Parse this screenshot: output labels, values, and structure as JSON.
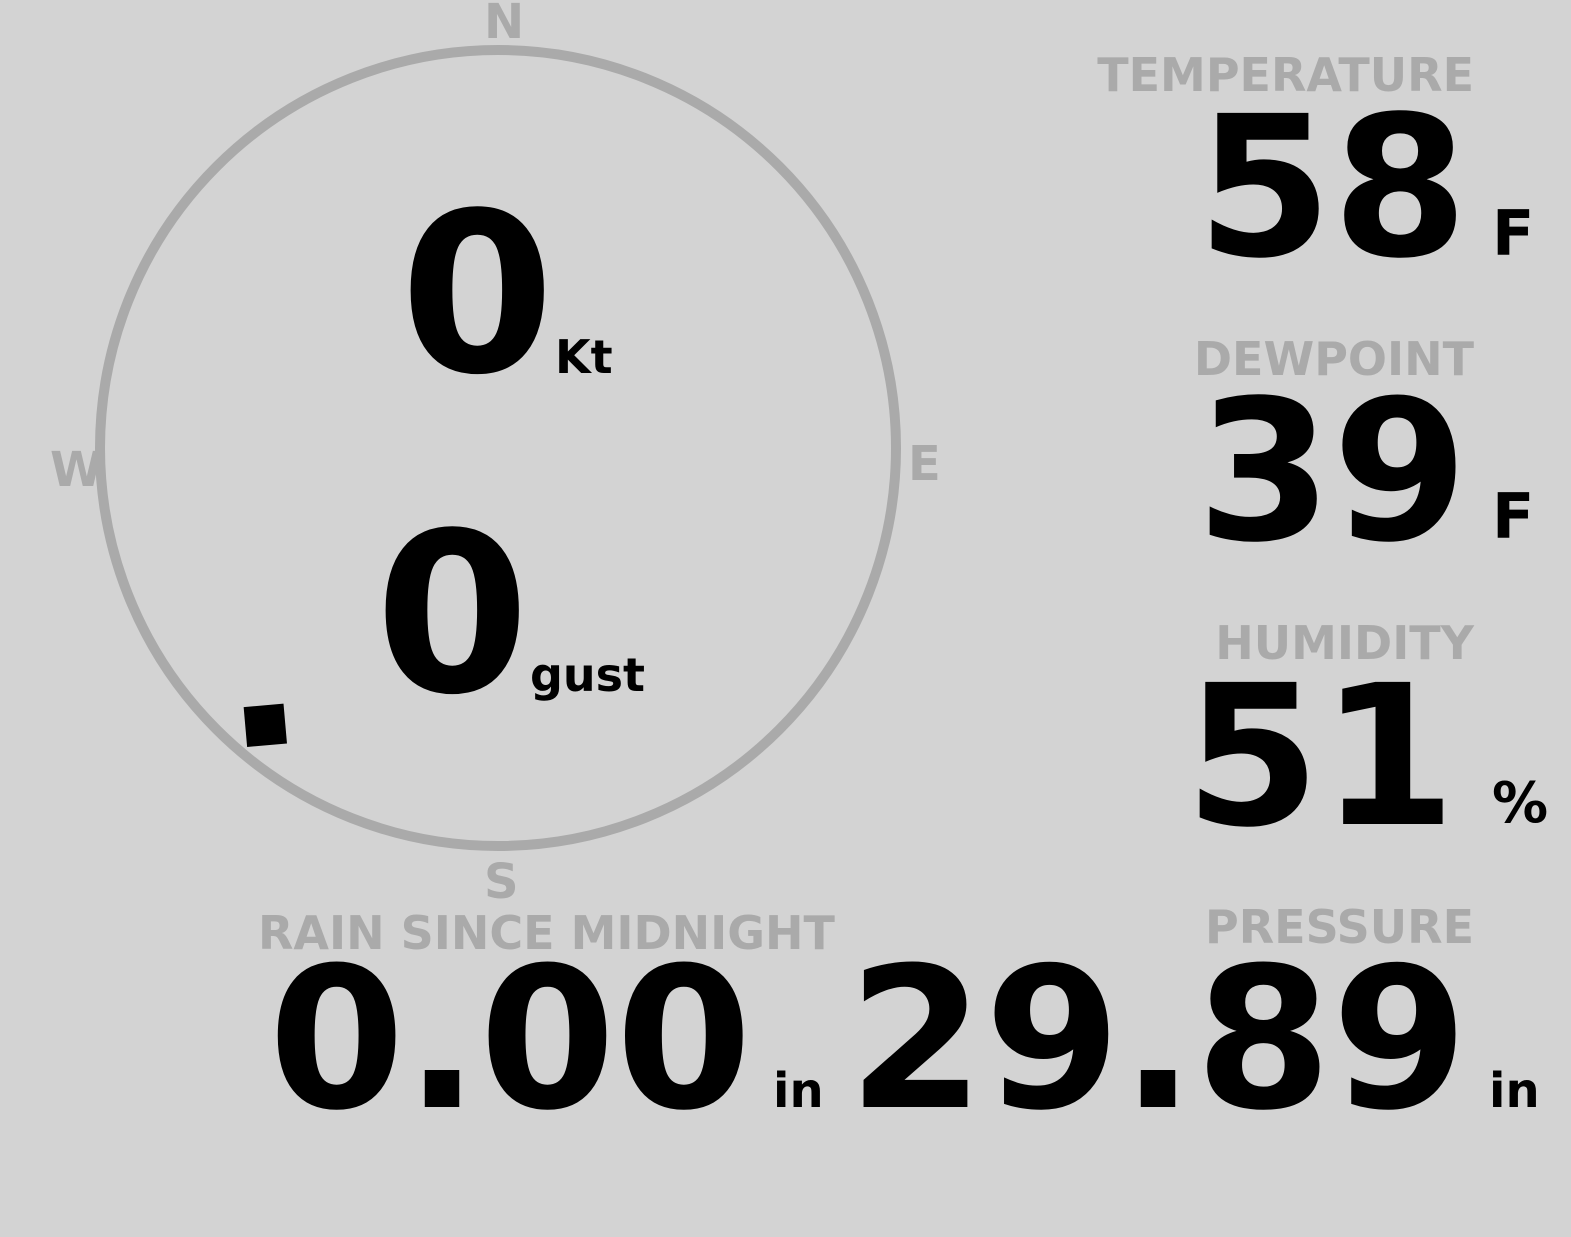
{
  "colors": {
    "background": "#d3d3d3",
    "label": "#aaaaaa",
    "value": "#000000",
    "compass_ring": "#aaaaaa",
    "pointer": "#000000"
  },
  "wind": {
    "compass": {
      "north": "N",
      "east": "E",
      "south": "S",
      "west": "W"
    },
    "direction_degrees": 220,
    "pointer_icon": "diamond",
    "speed": {
      "value": "0",
      "unit": "Kt"
    },
    "gust": {
      "value": "0",
      "unit": "gust"
    }
  },
  "temperature": {
    "label": "TEMPERATURE",
    "value": "58",
    "unit": "F"
  },
  "dewpoint": {
    "label": "DEWPOINT",
    "value": "39",
    "unit": "F"
  },
  "humidity": {
    "label": "HUMIDITY",
    "value": "51",
    "unit": "%"
  },
  "pressure": {
    "label": "PRESSURE",
    "value": "29.89",
    "unit": "in"
  },
  "rain": {
    "label": "RAIN SINCE MIDNIGHT",
    "value": "0.00",
    "unit": "in"
  }
}
